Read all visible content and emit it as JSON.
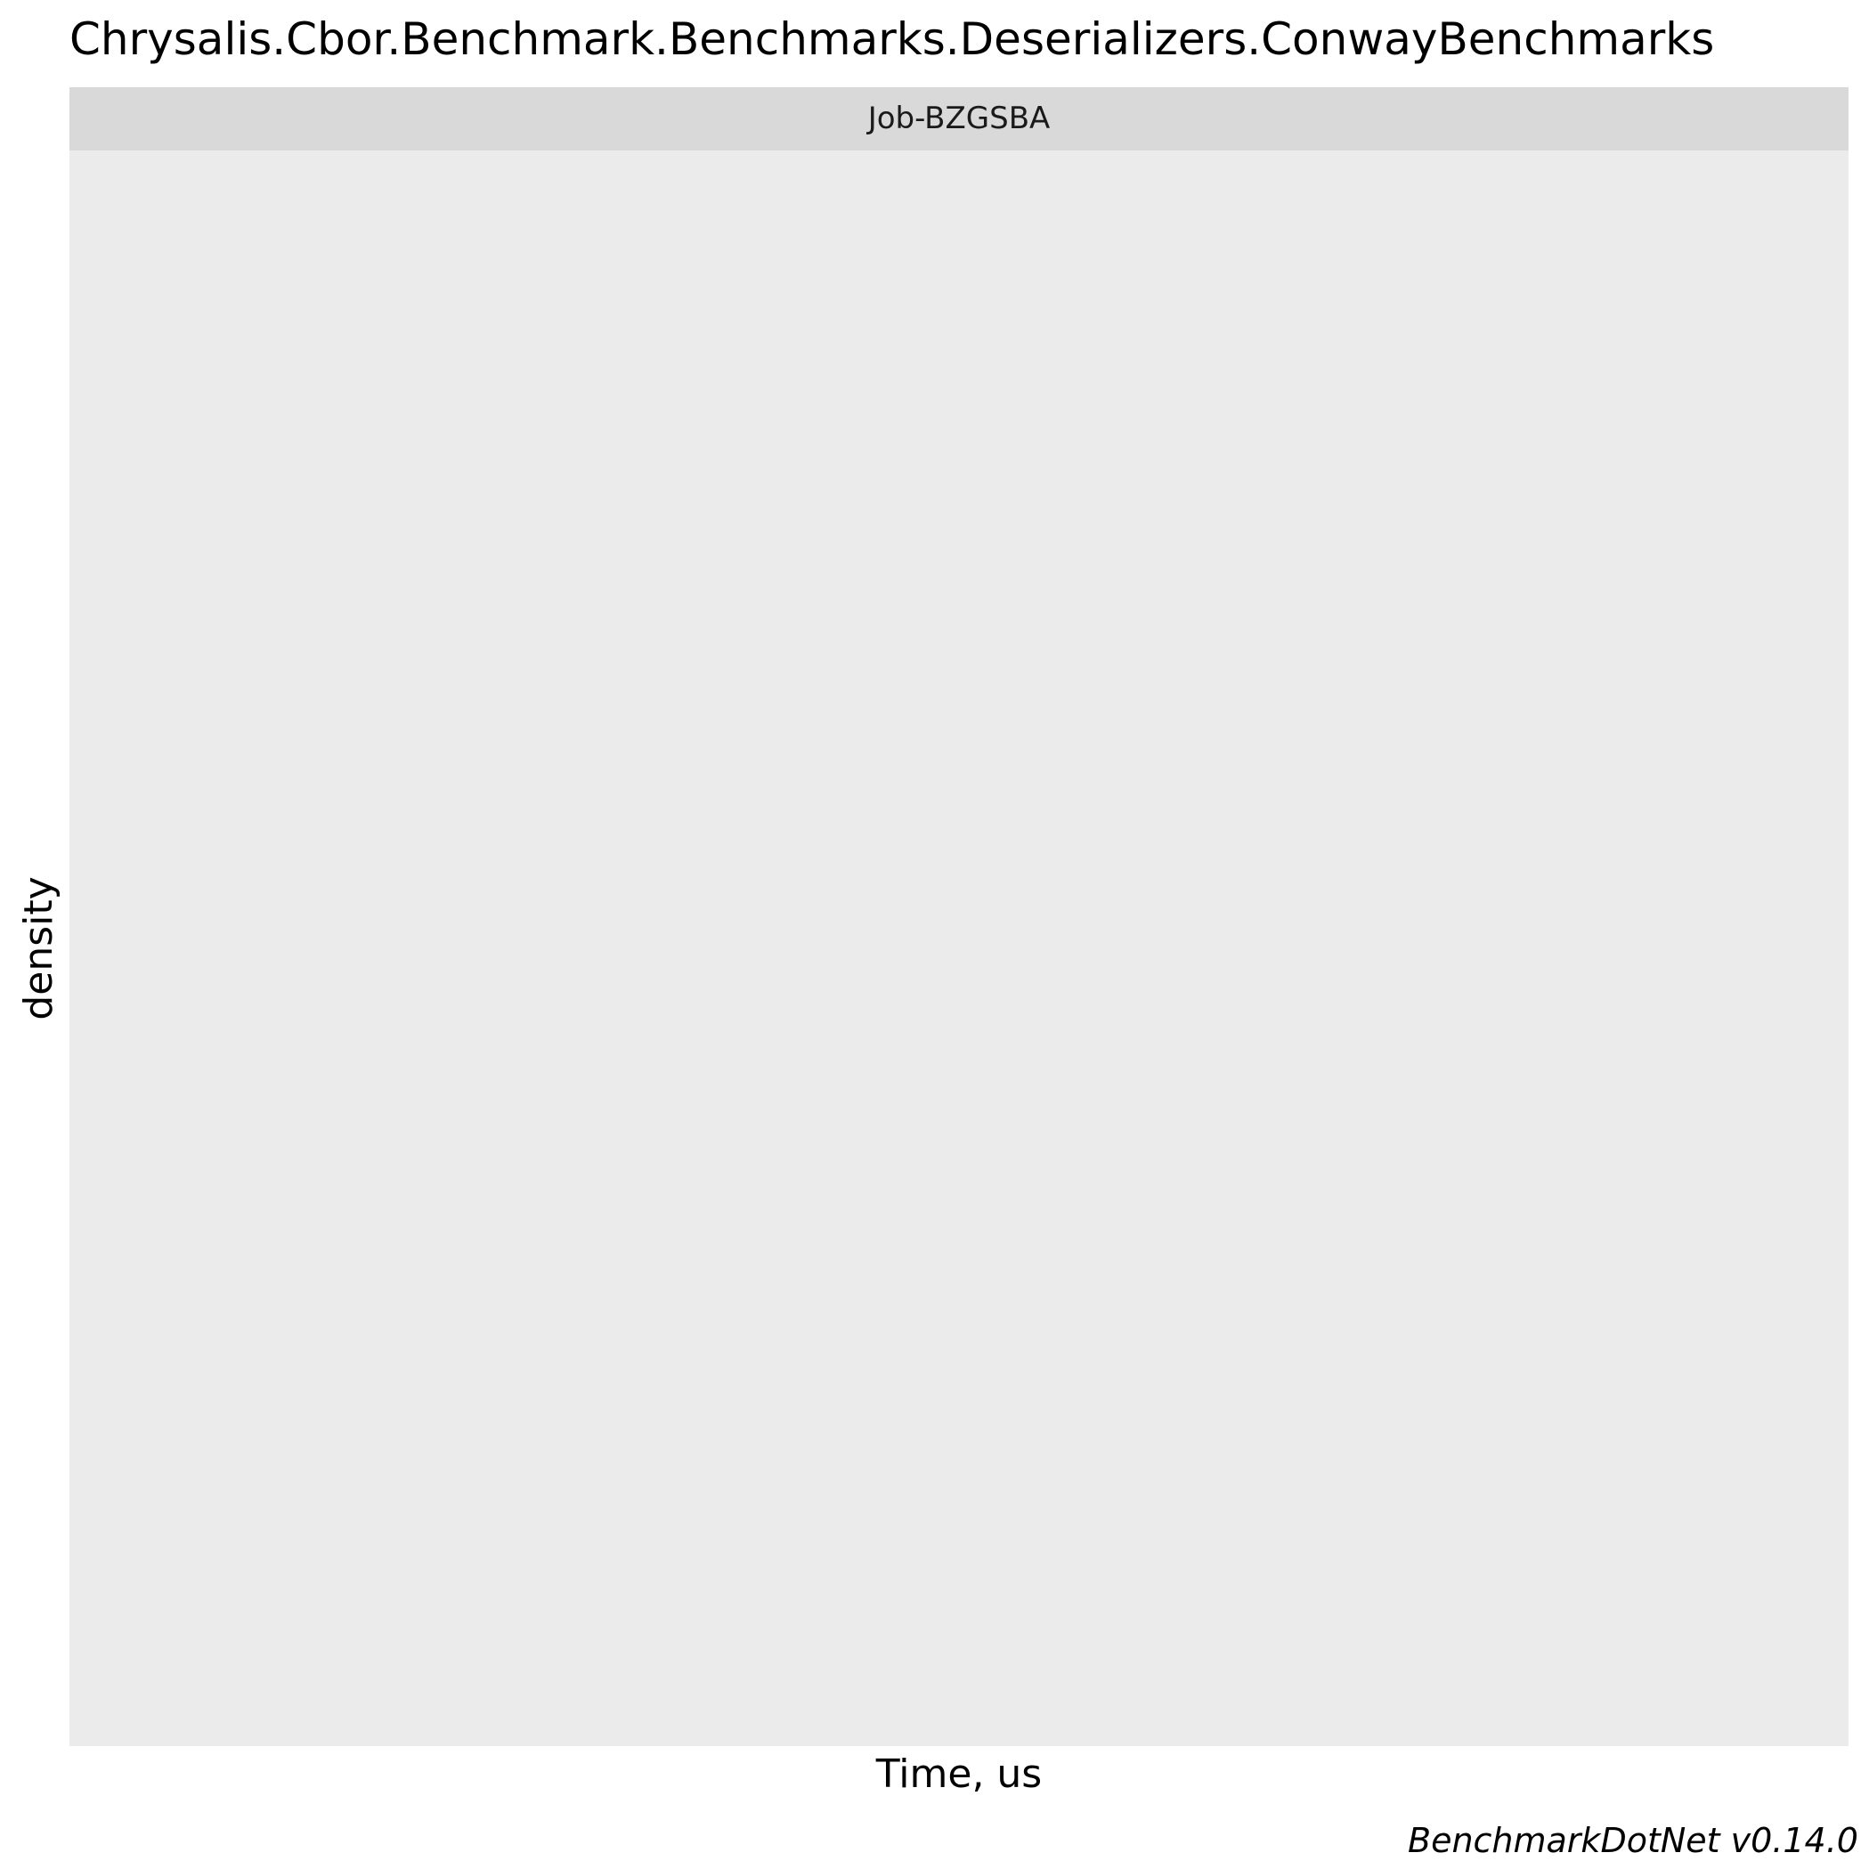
{
  "chart_data": {
    "type": "area",
    "title": "Chrysalis.Cbor.Benchmark.Benchmarks.Deserializers.ConwayBenchmarks",
    "facets": [
      {
        "label": "Job-BZGSBA",
        "series": []
      }
    ],
    "xlabel": "Time, us",
    "ylabel": "density",
    "caption": "BenchmarkDotNet v0.14.0",
    "grid": false,
    "legend": "none"
  },
  "colors": {
    "panel_background": "#ebebeb",
    "strip_background": "#d9d9d9",
    "page_background": "#ffffff"
  }
}
